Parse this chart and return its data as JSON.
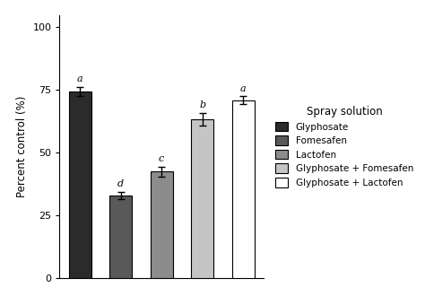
{
  "categories": [
    "Glyphosate",
    "Fomesafen",
    "Lactofen",
    "Glyphosate + Fomesafen",
    "Glyphosate + Lactofen"
  ],
  "values": [
    74.5,
    33.0,
    42.5,
    63.5,
    71.0
  ],
  "errors": [
    1.8,
    1.5,
    2.0,
    2.5,
    1.5
  ],
  "bar_colors": [
    "#2b2b2b",
    "#595959",
    "#8c8c8c",
    "#c5c5c5",
    "#ffffff"
  ],
  "bar_edgecolors": [
    "#000000",
    "#000000",
    "#000000",
    "#000000",
    "#000000"
  ],
  "letters": [
    "a",
    "d",
    "c",
    "b",
    "a"
  ],
  "ylabel": "Percent control (%)",
  "legend_title": "Spray solution",
  "ylim": [
    0,
    105
  ],
  "yticks": [
    0,
    25,
    50,
    75,
    100
  ],
  "background_color": "#ffffff",
  "bar_width": 0.55,
  "figsize": [
    4.74,
    3.3
  ],
  "dpi": 100
}
